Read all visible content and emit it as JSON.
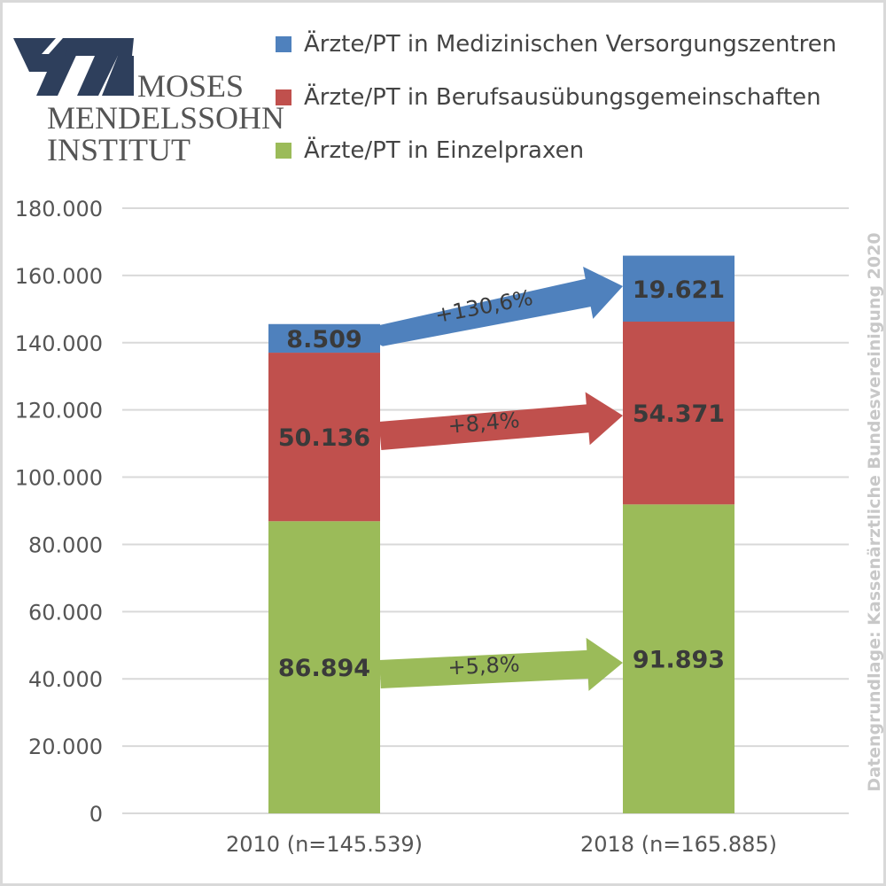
{
  "logo": {
    "line1": "MOSES",
    "line2": "MENDELSSOHN",
    "line3": "INSTITUT",
    "color": "#2e3f5c"
  },
  "source_note": "Datengrundlage: Kassenärztliche Bundesvereinigung 2020",
  "chart_data": {
    "type": "bar",
    "stacked": true,
    "categories": [
      "2010 (n=145.539)",
      "2018 (n=165.885)"
    ],
    "series": [
      {
        "name": "Ärzte/PT in Einzelpraxen",
        "values": [
          86894,
          91893
        ],
        "labels": [
          "86.894",
          "91.893"
        ],
        "color": "#9bbb59",
        "change": "+5,8%"
      },
      {
        "name": "Ärzte/PT in Berufsausübungsgemeinschaften",
        "values": [
          50136,
          54371
        ],
        "labels": [
          "50.136",
          "54.371"
        ],
        "color": "#c0504d",
        "change": "+8,4%"
      },
      {
        "name": "Ärzte/PT in Medizinischen Versorgungszentren",
        "values": [
          8509,
          19621
        ],
        "labels": [
          "8.509",
          "19.621"
        ],
        "color": "#4f81bd",
        "change": "+130,6%"
      }
    ],
    "legend_order": [
      2,
      1,
      0
    ],
    "legend_position": "top-right",
    "ylim": [
      0,
      180000
    ],
    "yticks": [
      0,
      20000,
      40000,
      60000,
      80000,
      100000,
      120000,
      140000,
      160000,
      180000
    ],
    "ytick_labels": [
      "0",
      "20.000",
      "40.000",
      "60.000",
      "80.000",
      "100.000",
      "120.000",
      "140.000",
      "160.000",
      "180.000"
    ],
    "grid": true
  }
}
